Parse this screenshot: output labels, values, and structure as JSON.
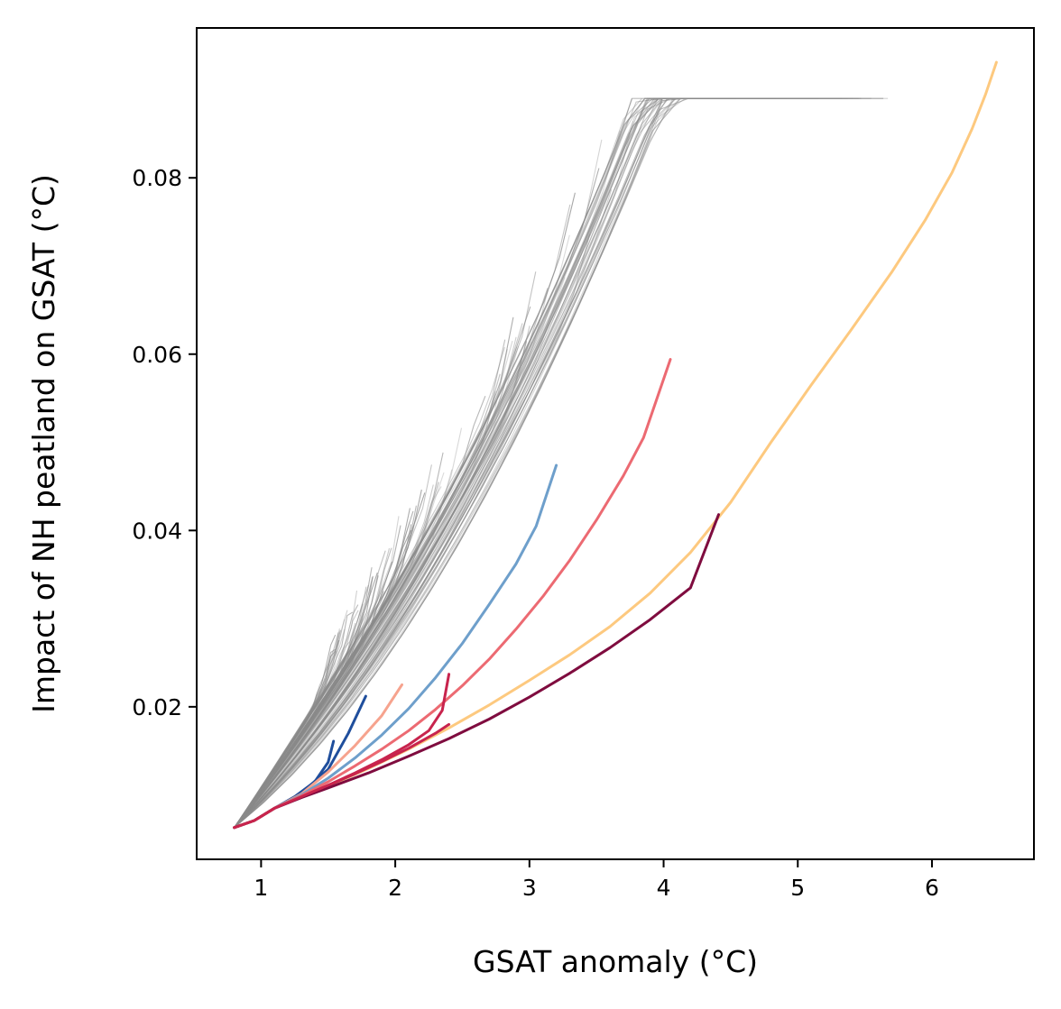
{
  "chart_data": {
    "type": "line",
    "title": "",
    "xlabel": "GSAT anomaly (°C)",
    "ylabel": "Impact of NH peatland on GSAT (°C)",
    "xlim": [
      0.52,
      6.76
    ],
    "ylim": [
      0.0027,
      0.097
    ],
    "xticks": [
      1,
      2,
      3,
      4,
      5,
      6
    ],
    "xtick_labels": [
      "1",
      "2",
      "3",
      "4",
      "5",
      "6"
    ],
    "yticks": [
      0.02,
      0.04,
      0.06,
      0.08
    ],
    "ytick_labels": [
      "0.02",
      "0.04",
      "0.06",
      "0.08"
    ],
    "grid": false,
    "legend": "none",
    "colors": {
      "ensemble": "#8a8a8a",
      "dark_blue": "#1f4e9c",
      "light_blue": "#6e9fcb",
      "salmon": "#f6a38e",
      "red": "#ec6a72",
      "crimson": "#c8244d",
      "maroon": "#7f0c3f",
      "orange": "#fdc97f"
    },
    "series": [
      {
        "color": "dark_blue",
        "style": "highlight",
        "x": [
          0.8,
          0.95,
          1.1,
          1.25,
          1.4,
          1.5,
          1.54
        ],
        "y": [
          0.0063,
          0.0071,
          0.0085,
          0.0098,
          0.0115,
          0.0137,
          0.0161
        ]
      },
      {
        "color": "dark_blue",
        "style": "highlight",
        "x": [
          0.8,
          0.95,
          1.1,
          1.3,
          1.5,
          1.65,
          1.78
        ],
        "y": [
          0.0063,
          0.0071,
          0.0085,
          0.0102,
          0.0129,
          0.017,
          0.0212
        ]
      },
      {
        "color": "salmon",
        "style": "highlight",
        "x": [
          0.8,
          0.95,
          1.1,
          1.3,
          1.5,
          1.7,
          1.9,
          2.05
        ],
        "y": [
          0.0063,
          0.0071,
          0.0085,
          0.0101,
          0.0126,
          0.0156,
          0.019,
          0.0225
        ]
      },
      {
        "color": "light_blue",
        "style": "highlight",
        "x": [
          0.8,
          0.95,
          1.1,
          1.3,
          1.5,
          1.7,
          1.9,
          2.1,
          2.3,
          2.5,
          2.7,
          2.9,
          3.05,
          3.2
        ],
        "y": [
          0.0063,
          0.0071,
          0.0085,
          0.01,
          0.0119,
          0.0142,
          0.0168,
          0.0198,
          0.0233,
          0.0272,
          0.0316,
          0.0362,
          0.0405,
          0.0474
        ]
      },
      {
        "color": "red",
        "style": "highlight",
        "x": [
          0.8,
          0.95,
          1.1,
          1.3,
          1.5,
          1.7,
          1.9,
          2.1,
          2.3,
          2.5,
          2.7,
          2.9,
          3.1,
          3.3,
          3.5,
          3.7,
          3.85,
          4.05
        ],
        "y": [
          0.0063,
          0.0071,
          0.0085,
          0.0099,
          0.0115,
          0.0133,
          0.0152,
          0.0173,
          0.0197,
          0.0224,
          0.0254,
          0.0288,
          0.0325,
          0.0366,
          0.0412,
          0.0462,
          0.0505,
          0.0594
        ]
      },
      {
        "color": "crimson",
        "style": "highlight",
        "x": [
          0.8,
          0.95,
          1.1,
          1.3,
          1.5,
          1.7,
          1.9,
          2.1,
          2.25,
          2.35,
          2.4
        ],
        "y": [
          0.0063,
          0.0071,
          0.0085,
          0.0098,
          0.0111,
          0.0125,
          0.014,
          0.0157,
          0.0173,
          0.0196,
          0.0237
        ]
      },
      {
        "color": "orange",
        "style": "highlight",
        "x": [
          0.8,
          0.95,
          1.1,
          1.3,
          1.5,
          1.8,
          2.1,
          2.4,
          2.7,
          3.0,
          3.3,
          3.6,
          3.9,
          4.2,
          4.5,
          4.8,
          5.1,
          5.4,
          5.7,
          5.95,
          6.15,
          6.3,
          6.4,
          6.48
        ],
        "y": [
          0.0063,
          0.0071,
          0.0085,
          0.0098,
          0.011,
          0.013,
          0.0152,
          0.0176,
          0.0202,
          0.023,
          0.0259,
          0.0291,
          0.0329,
          0.0375,
          0.0432,
          0.05,
          0.0565,
          0.0628,
          0.0693,
          0.0752,
          0.0806,
          0.0856,
          0.0895,
          0.0931
        ]
      },
      {
        "color": "maroon",
        "style": "highlight",
        "x": [
          0.8,
          0.95,
          1.1,
          1.3,
          1.5,
          1.8,
          2.1,
          2.4,
          2.7,
          3.0,
          3.3,
          3.6,
          3.9,
          4.2,
          4.41
        ],
        "y": [
          0.0063,
          0.0071,
          0.0085,
          0.0097,
          0.0108,
          0.0125,
          0.0144,
          0.0164,
          0.0186,
          0.0211,
          0.0238,
          0.0267,
          0.0299,
          0.0335,
          0.0418
        ]
      },
      {
        "color": "crimson",
        "style": "highlight",
        "x": [
          0.8,
          0.95,
          1.1,
          1.3,
          1.5,
          1.7,
          1.9,
          2.1,
          2.3,
          2.4
        ],
        "y": [
          0.0063,
          0.0071,
          0.0085,
          0.0098,
          0.0111,
          0.0124,
          0.0138,
          0.0153,
          0.017,
          0.018
        ]
      }
    ]
  }
}
